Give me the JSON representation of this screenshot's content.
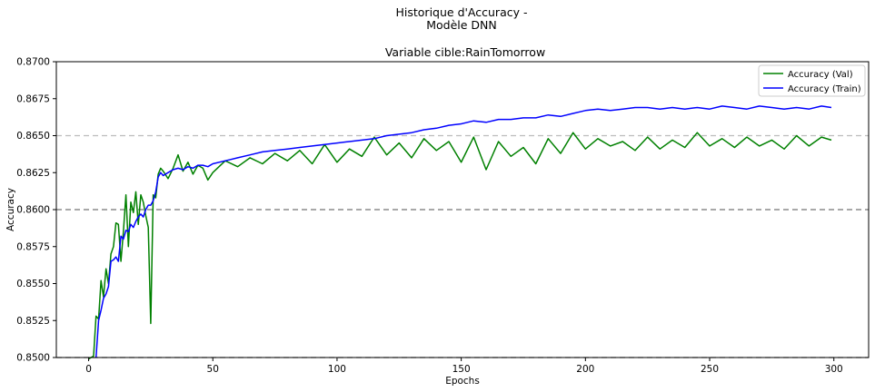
{
  "chart_data": {
    "type": "line",
    "suptitle_line1": "Historique d'Accuracy -",
    "suptitle_line2": "Modèle DNN",
    "title": "Variable cible:RainTomorrow",
    "xlabel": "Epochs",
    "ylabel": "Accuracy",
    "xlim": [
      -13,
      314
    ],
    "ylim": [
      0.85,
      0.87
    ],
    "xticks": [
      0,
      50,
      100,
      150,
      200,
      250,
      300
    ],
    "yticks": [
      0.85,
      0.8525,
      0.855,
      0.8575,
      0.86,
      0.8625,
      0.865,
      0.8675,
      0.87
    ],
    "ytick_labels": [
      "0.8500",
      "0.8525",
      "0.8550",
      "0.8575",
      "0.8600",
      "0.8625",
      "0.8650",
      "0.8675",
      "0.8700"
    ],
    "hlines": [
      {
        "y": 0.85,
        "color": "#000000",
        "style": "dashed"
      },
      {
        "y": 0.86,
        "color": "#000000",
        "style": "dashed"
      },
      {
        "y": 0.865,
        "color": "#aaaaaa",
        "style": "dashed"
      }
    ],
    "legend_position": "top-right",
    "series": [
      {
        "name": "Accuracy (Val)",
        "color": "#008000",
        "x": [
          0,
          2,
          3,
          4,
          5,
          6,
          7,
          8,
          9,
          10,
          11,
          12,
          13,
          14,
          15,
          16,
          17,
          18,
          19,
          20,
          21,
          22,
          23,
          24,
          25,
          26,
          27,
          28,
          29,
          30,
          32,
          34,
          36,
          38,
          40,
          42,
          44,
          46,
          48,
          50,
          55,
          60,
          65,
          70,
          75,
          80,
          85,
          90,
          95,
          100,
          105,
          110,
          115,
          120,
          125,
          130,
          135,
          140,
          145,
          150,
          155,
          160,
          165,
          170,
          175,
          180,
          185,
          190,
          195,
          200,
          205,
          210,
          215,
          220,
          225,
          230,
          235,
          240,
          245,
          250,
          255,
          260,
          265,
          270,
          275,
          280,
          285,
          290,
          295,
          299
        ],
        "y": [
          0.8499,
          0.8501,
          0.8528,
          0.8526,
          0.8552,
          0.8541,
          0.856,
          0.855,
          0.857,
          0.8575,
          0.8591,
          0.859,
          0.8565,
          0.8585,
          0.861,
          0.8575,
          0.8605,
          0.8598,
          0.8612,
          0.859,
          0.861,
          0.8605,
          0.8596,
          0.8588,
          0.8523,
          0.861,
          0.8608,
          0.8624,
          0.8628,
          0.8626,
          0.8621,
          0.8628,
          0.8637,
          0.8626,
          0.8632,
          0.8624,
          0.863,
          0.8628,
          0.862,
          0.8625,
          0.8633,
          0.8629,
          0.8635,
          0.8631,
          0.8638,
          0.8633,
          0.864,
          0.8631,
          0.8644,
          0.8632,
          0.8641,
          0.8636,
          0.8649,
          0.8637,
          0.8645,
          0.8635,
          0.8648,
          0.864,
          0.8646,
          0.8632,
          0.8649,
          0.8627,
          0.8646,
          0.8636,
          0.8642,
          0.8631,
          0.8648,
          0.8638,
          0.8652,
          0.8641,
          0.8648,
          0.8643,
          0.8646,
          0.864,
          0.8649,
          0.8641,
          0.8647,
          0.8642,
          0.8652,
          0.8643,
          0.8648,
          0.8642,
          0.8649,
          0.8643,
          0.8647,
          0.8641,
          0.865,
          0.8643,
          0.8649,
          0.8647
        ]
      },
      {
        "name": "Accuracy (Train)",
        "color": "#0000ff",
        "x": [
          3,
          4,
          5,
          6,
          7,
          8,
          9,
          10,
          11,
          12,
          13,
          14,
          15,
          16,
          17,
          18,
          19,
          20,
          21,
          22,
          23,
          24,
          25,
          26,
          27,
          28,
          29,
          30,
          32,
          34,
          36,
          38,
          40,
          42,
          44,
          46,
          48,
          50,
          55,
          60,
          65,
          70,
          75,
          80,
          85,
          90,
          95,
          100,
          105,
          110,
          115,
          120,
          125,
          130,
          135,
          140,
          145,
          150,
          155,
          160,
          165,
          170,
          175,
          180,
          185,
          190,
          195,
          200,
          205,
          210,
          215,
          220,
          225,
          230,
          235,
          240,
          245,
          250,
          255,
          260,
          265,
          270,
          275,
          280,
          285,
          290,
          295,
          299
        ],
        "y": [
          0.85,
          0.8525,
          0.8532,
          0.854,
          0.8543,
          0.8548,
          0.8565,
          0.8566,
          0.8568,
          0.8565,
          0.8582,
          0.858,
          0.8586,
          0.8585,
          0.859,
          0.8588,
          0.8592,
          0.8595,
          0.8597,
          0.8595,
          0.86,
          0.8603,
          0.8603,
          0.8606,
          0.8612,
          0.8622,
          0.8625,
          0.8623,
          0.8625,
          0.8627,
          0.8628,
          0.8627,
          0.8629,
          0.8628,
          0.863,
          0.863,
          0.8629,
          0.8631,
          0.8633,
          0.8635,
          0.8637,
          0.8639,
          0.864,
          0.8641,
          0.8642,
          0.8643,
          0.8644,
          0.8645,
          0.8646,
          0.8647,
          0.8648,
          0.865,
          0.8651,
          0.8652,
          0.8654,
          0.8655,
          0.8657,
          0.8658,
          0.866,
          0.8659,
          0.8661,
          0.8661,
          0.8662,
          0.8662,
          0.8664,
          0.8663,
          0.8665,
          0.8667,
          0.8668,
          0.8667,
          0.8668,
          0.8669,
          0.8669,
          0.8668,
          0.8669,
          0.8668,
          0.8669,
          0.8668,
          0.867,
          0.8669,
          0.8668,
          0.867,
          0.8669,
          0.8668,
          0.8669,
          0.8668,
          0.867,
          0.8669
        ]
      }
    ]
  }
}
